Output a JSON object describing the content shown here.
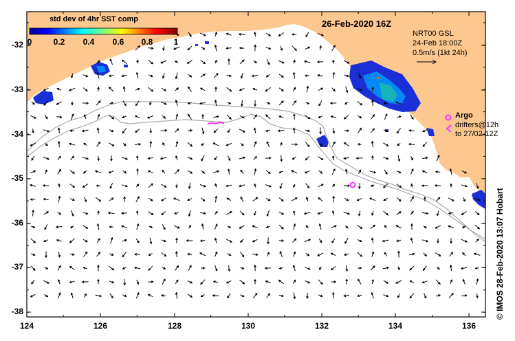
{
  "colorbar": {
    "title": "std dev of 4hr SST comp",
    "ticks": [
      "0",
      "0.2",
      "0.4",
      "0.6",
      "0.8",
      "1"
    ]
  },
  "map_title": "26-Feb-2020 16Z",
  "current_source": {
    "line1": "NRT00 GSL",
    "line2": "24-Feb 18:00Z",
    "line3": "0.5m/s (1kt 24h)"
  },
  "argo": {
    "label": "Argo",
    "line1": "drifters@12h",
    "line2": "to 27/02-12Z",
    "color": "#ff33ff"
  },
  "credit": "©  IMOS 28-Feb-2020 13:07 Hobart",
  "axes": {
    "x_ticks": [
      "124",
      "126",
      "128",
      "130",
      "132",
      "134",
      "136"
    ],
    "y_ticks": [
      "-32",
      "-33",
      "-34",
      "-35",
      "-36",
      "-37",
      "-38"
    ]
  },
  "colors": {
    "land": "#fcc890",
    "shelf_contour": "#aaaaaa",
    "arrows": "#000000"
  }
}
